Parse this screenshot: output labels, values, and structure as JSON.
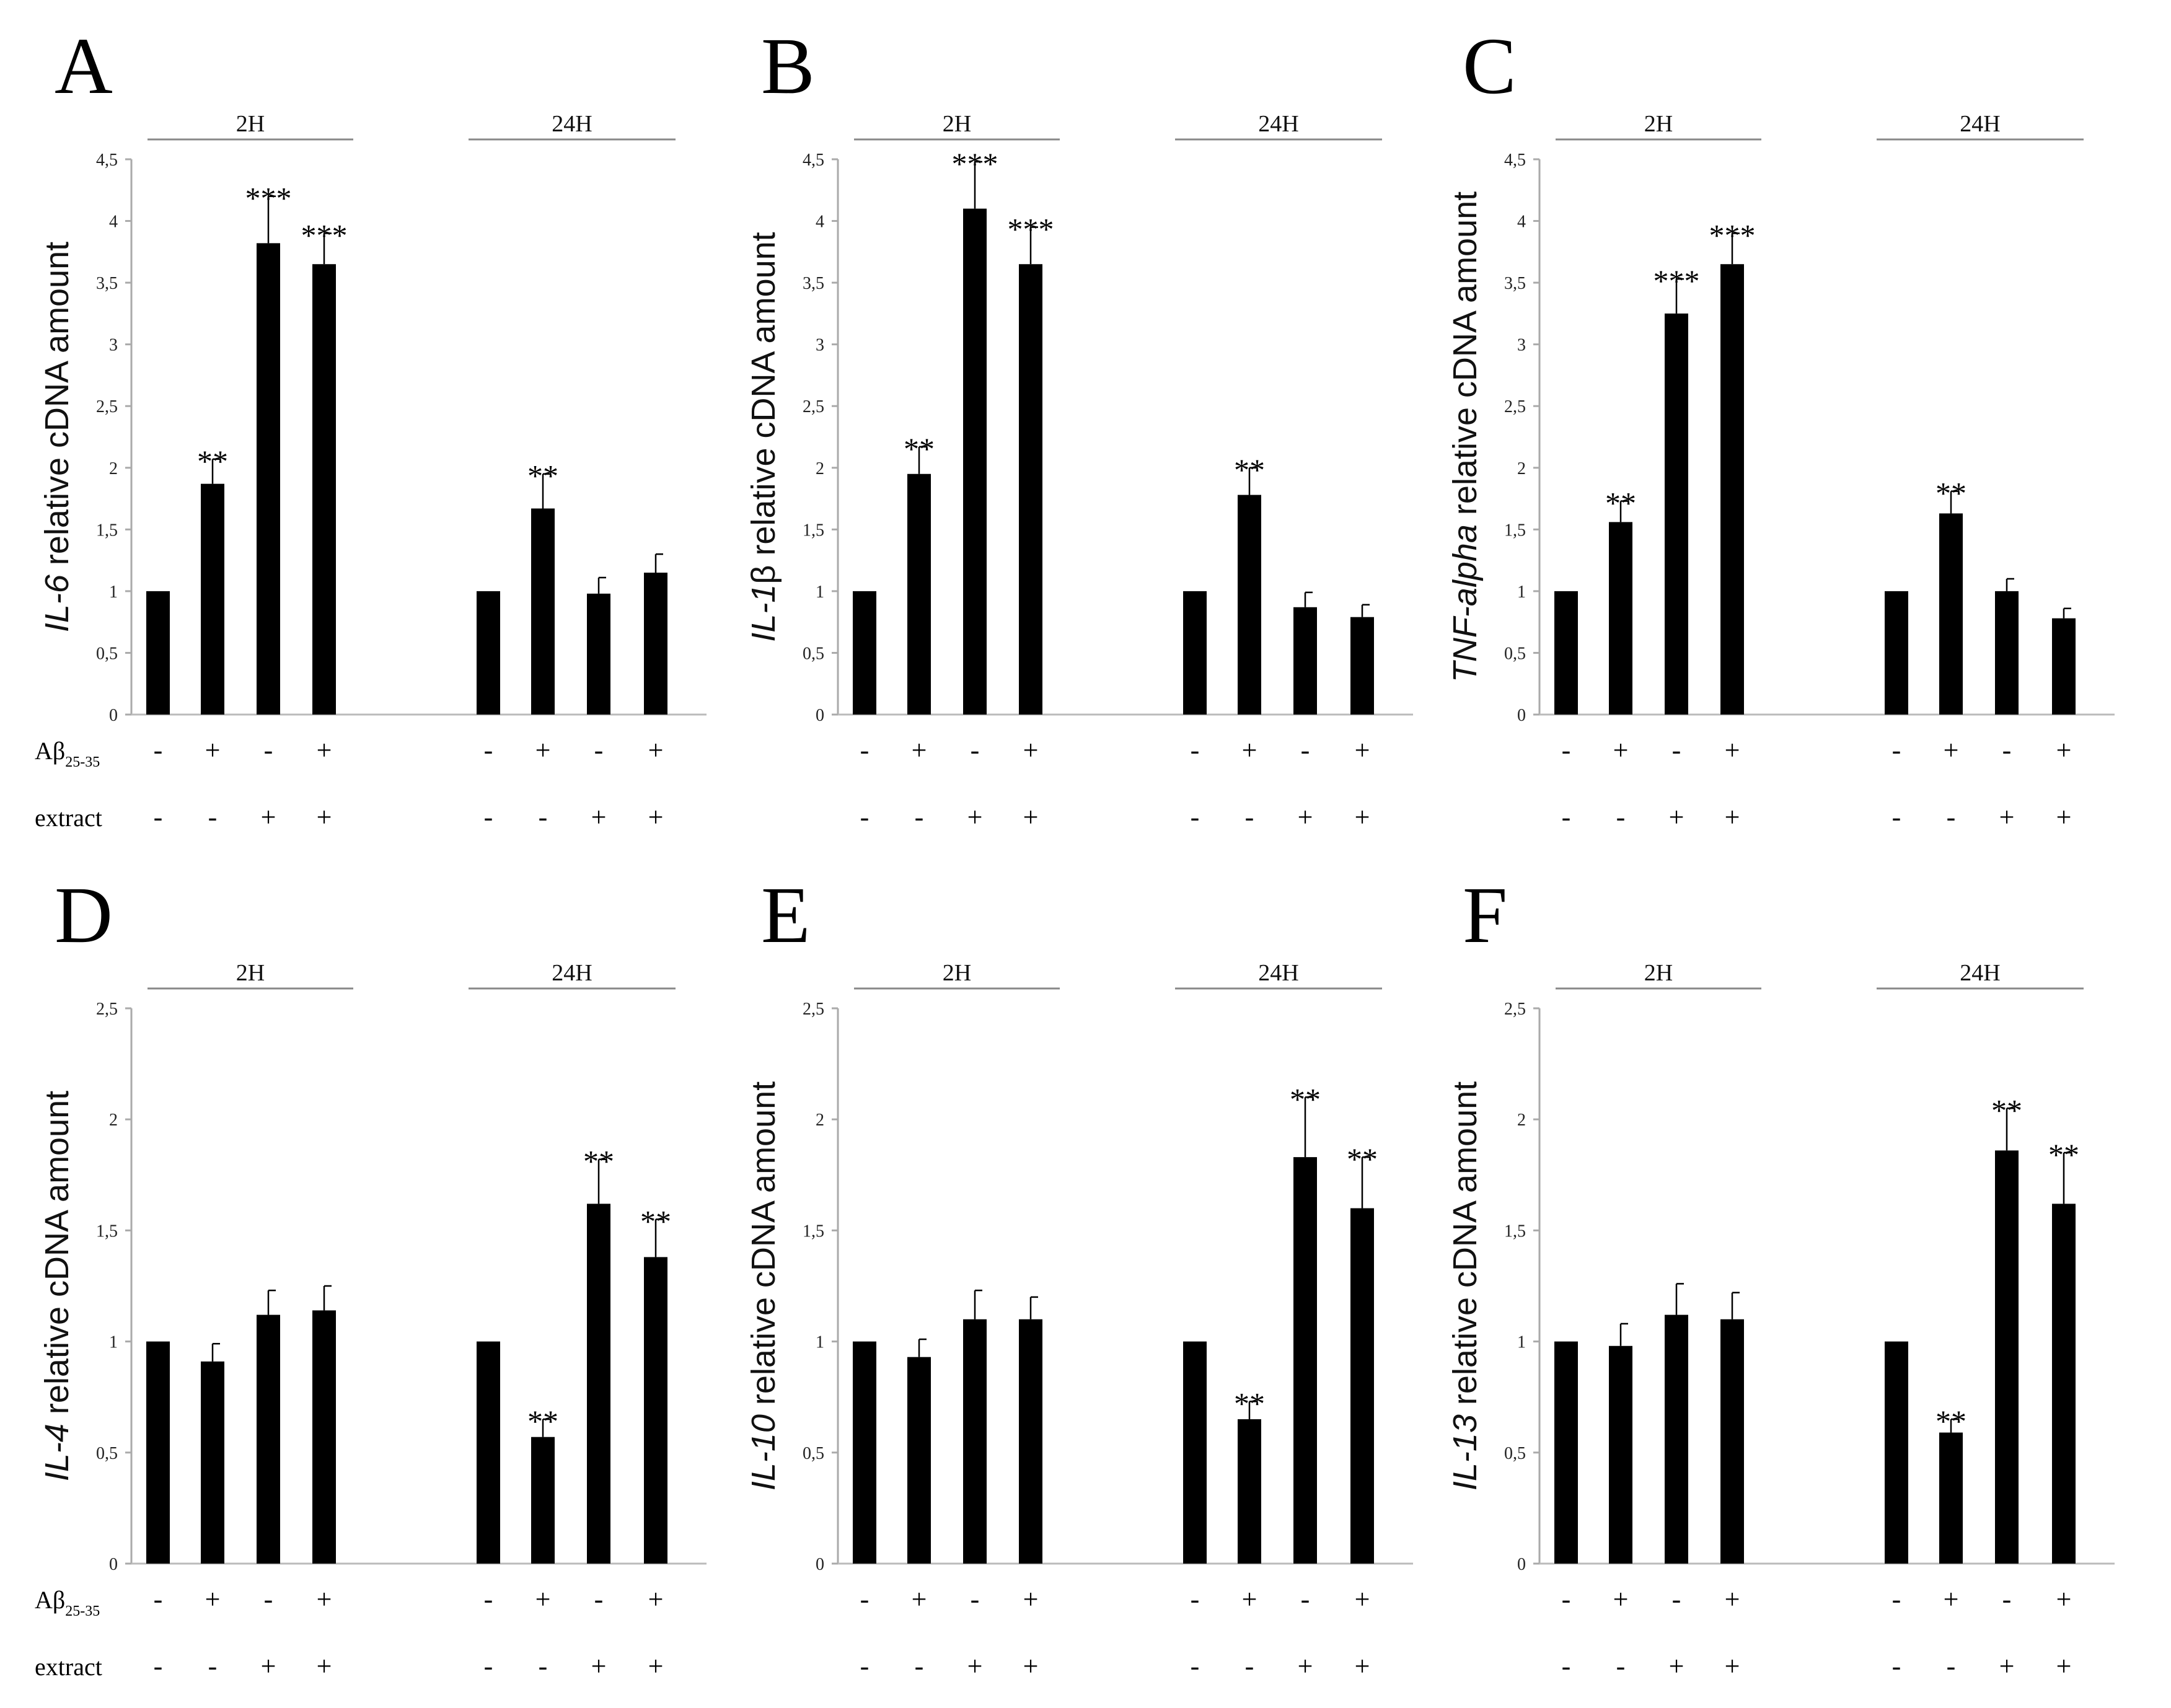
{
  "row_labels": {
    "abeta_main": "Aβ",
    "abeta_sub": "25-35",
    "extract": "extract"
  },
  "conditions": {
    "abeta": [
      "-",
      "+",
      "-",
      "+"
    ],
    "extract": [
      "-",
      "-",
      "+",
      "+"
    ]
  },
  "groups": [
    "2H",
    "24H"
  ],
  "chart_data": [
    {
      "type": "bar",
      "panel": "A",
      "gene": "IL-6",
      "ylabel_rest": " relative cDNA amount",
      "ylim": [
        0,
        4.5
      ],
      "yticks": [
        "0",
        "0,5",
        "1",
        "1,5",
        "2",
        "2,5",
        "3",
        "3,5",
        "4",
        "4,5"
      ],
      "groups": [
        "2H",
        "24H"
      ],
      "values": [
        [
          1,
          1.87,
          3.82,
          3.65
        ],
        [
          1,
          1.67,
          0.98,
          1.15
        ]
      ],
      "errors": [
        [
          0,
          0.2,
          0.38,
          0.25
        ],
        [
          0,
          0.28,
          0.13,
          0.15
        ]
      ],
      "significance": [
        [
          "",
          "**",
          "***",
          "***"
        ],
        [
          "",
          "**",
          "",
          ""
        ]
      ]
    },
    {
      "type": "bar",
      "panel": "B",
      "gene": "IL-1",
      "gene_suffix": "β",
      "ylabel_rest": " relative cDNA amount",
      "ylim": [
        0,
        4.5
      ],
      "yticks": [
        "0",
        "0,5",
        "1",
        "1,5",
        "2",
        "2,5",
        "3",
        "3,5",
        "4",
        "4,5"
      ],
      "groups": [
        "2H",
        "24H"
      ],
      "values": [
        [
          1,
          1.95,
          4.1,
          3.65
        ],
        [
          1,
          1.78,
          0.87,
          0.79
        ]
      ],
      "errors": [
        [
          0,
          0.22,
          0.38,
          0.3
        ],
        [
          0,
          0.22,
          0.12,
          0.1
        ]
      ],
      "significance": [
        [
          "",
          "**",
          "***",
          "***"
        ],
        [
          "",
          "**",
          "",
          ""
        ]
      ]
    },
    {
      "type": "bar",
      "panel": "C",
      "gene": "TNF-alpha",
      "ylabel_rest": " relative cDNA amount",
      "ylim": [
        0,
        4.5
      ],
      "yticks": [
        "0",
        "0,5",
        "1",
        "1,5",
        "2",
        "2,5",
        "3",
        "3,5",
        "4",
        "4,5"
      ],
      "groups": [
        "2H",
        "24H"
      ],
      "values": [
        [
          1,
          1.56,
          3.25,
          3.65
        ],
        [
          1,
          1.63,
          1.0,
          0.78
        ]
      ],
      "errors": [
        [
          0,
          0.17,
          0.28,
          0.25
        ],
        [
          0,
          0.18,
          0.1,
          0.08
        ]
      ],
      "significance": [
        [
          "",
          "**",
          "***",
          "***"
        ],
        [
          "",
          "**",
          "",
          ""
        ]
      ]
    },
    {
      "type": "bar",
      "panel": "D",
      "gene": "IL-4",
      "ylabel_rest": " relative cDNA amount",
      "ylim": [
        0,
        2.5
      ],
      "yticks": [
        "0",
        "0,5",
        "1",
        "1,5",
        "2",
        "2,5"
      ],
      "groups": [
        "2H",
        "24H"
      ],
      "values": [
        [
          1,
          0.91,
          1.12,
          1.14
        ],
        [
          1,
          0.57,
          1.62,
          1.38
        ]
      ],
      "errors": [
        [
          0,
          0.08,
          0.11,
          0.11
        ],
        [
          0,
          0.08,
          0.2,
          0.17
        ]
      ],
      "significance": [
        [
          "",
          "",
          "",
          ""
        ],
        [
          "",
          "**",
          "**",
          "**"
        ]
      ]
    },
    {
      "type": "bar",
      "panel": "E",
      "gene": "IL-10",
      "ylabel_rest": " relative cDNA amount",
      "ylim": [
        0,
        2.5
      ],
      "yticks": [
        "0",
        "0,5",
        "1",
        "1,5",
        "2",
        "2,5"
      ],
      "groups": [
        "2H",
        "24H"
      ],
      "values": [
        [
          1,
          0.93,
          1.1,
          1.1
        ],
        [
          1,
          0.65,
          1.83,
          1.6
        ]
      ],
      "errors": [
        [
          0,
          0.08,
          0.13,
          0.1
        ],
        [
          0,
          0.08,
          0.27,
          0.23
        ]
      ],
      "significance": [
        [
          "",
          "",
          "",
          ""
        ],
        [
          "",
          "**",
          "**",
          "**"
        ]
      ]
    },
    {
      "type": "bar",
      "panel": "F",
      "gene": "IL-13",
      "ylabel_rest": " relative cDNA amount",
      "ylim": [
        0,
        2.5
      ],
      "yticks": [
        "0",
        "0,5",
        "1",
        "1,5",
        "2",
        "2,5"
      ],
      "groups": [
        "2H",
        "24H"
      ],
      "values": [
        [
          1,
          0.98,
          1.12,
          1.1
        ],
        [
          1,
          0.59,
          1.86,
          1.62
        ]
      ],
      "errors": [
        [
          0,
          0.1,
          0.14,
          0.12
        ],
        [
          0,
          0.06,
          0.19,
          0.23
        ]
      ],
      "significance": [
        [
          "",
          "",
          "",
          ""
        ],
        [
          "",
          "**",
          "**",
          "**"
        ]
      ]
    }
  ]
}
